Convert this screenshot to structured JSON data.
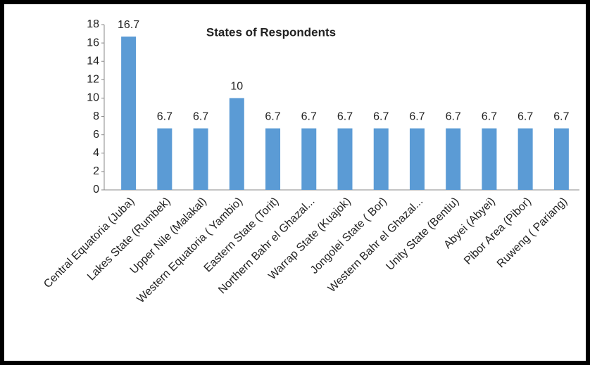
{
  "chart_data": {
    "type": "bar",
    "title": "States of Respondents",
    "categories": [
      "Central Equatoria  (Juba)",
      "Lakes State  (Rumbek)",
      "Upper Nile (Malakal)",
      "Western Equatoria ( Yambio)",
      "Eastern State  (Torit)",
      "Northern Bahr el Ghazal...",
      "Warrap State (Kuajok)",
      "Jongolei State  ( Bor)",
      "Western Bahr el Ghazal...",
      "Unity State (Bentiu)",
      "Abyei (Abyei)",
      "Pibor Area (Pibor)",
      "Ruweng ( Pariang)"
    ],
    "values": [
      16.7,
      6.7,
      6.7,
      10,
      6.7,
      6.7,
      6.7,
      6.7,
      6.7,
      6.7,
      6.7,
      6.7,
      6.7
    ],
    "color": "#5b9bd5",
    "ylim": [
      0,
      18
    ],
    "yticks": [
      0,
      2,
      4,
      6,
      8,
      10,
      12,
      14,
      16,
      18
    ],
    "grid": false
  }
}
